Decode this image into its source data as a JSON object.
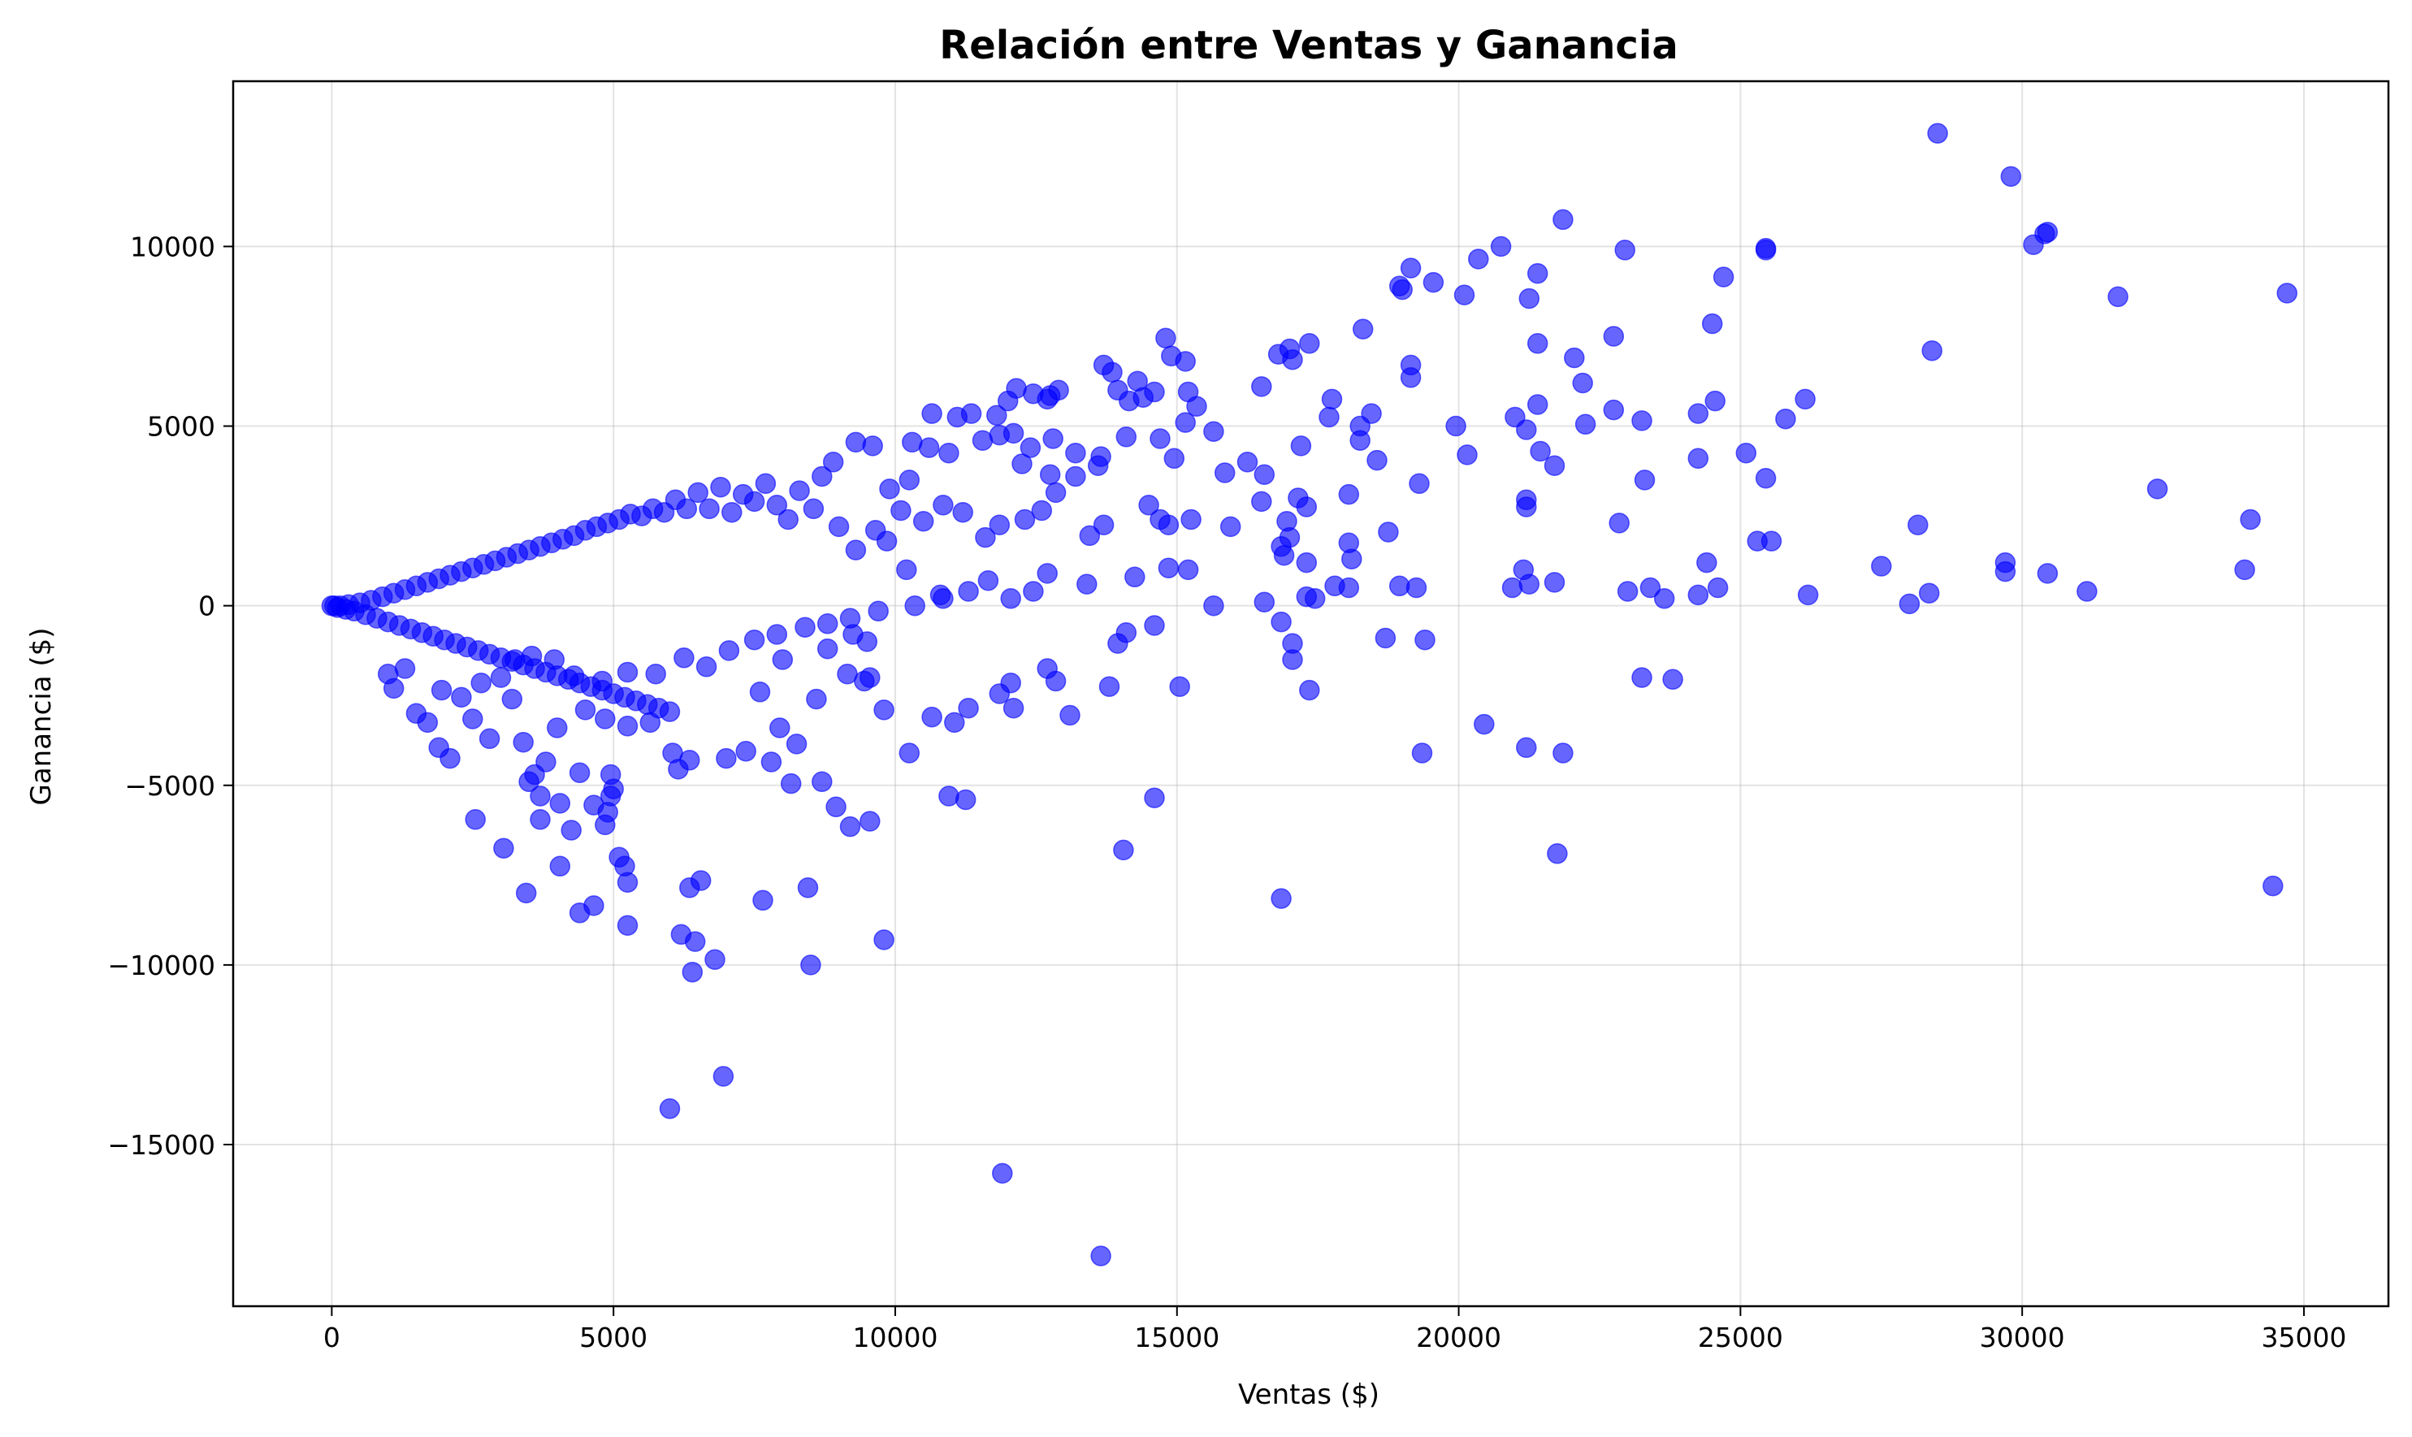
{
  "chart_data": {
    "type": "scatter",
    "title": "Relación entre Ventas y Ganancia",
    "xlabel": "Ventas ($)",
    "ylabel": "Ganancia ($)",
    "xlim": [
      -1750,
      36500
    ],
    "ylim": [
      -19500,
      14600
    ],
    "xticks": [
      0,
      5000,
      10000,
      15000,
      20000,
      25000,
      30000,
      35000
    ],
    "xtick_labels": [
      "0",
      "5000",
      "10000",
      "15000",
      "20000",
      "25000",
      "30000",
      "35000"
    ],
    "yticks": [
      -15000,
      -10000,
      -5000,
      0,
      5000,
      10000
    ],
    "ytick_labels": [
      "−15000",
      "−10000",
      "−5000",
      "0",
      "5000",
      "10000"
    ],
    "grid": true,
    "color": "#0000ff",
    "alpha": 0.6,
    "points": [
      [
        28500,
        13150
      ],
      [
        29800,
        11950
      ],
      [
        30450,
        10400
      ],
      [
        30400,
        10350
      ],
      [
        30200,
        10050
      ],
      [
        25450,
        9950
      ],
      [
        25450,
        9900
      ],
      [
        21850,
        10750
      ],
      [
        20750,
        10000
      ],
      [
        20350,
        9650
      ],
      [
        22950,
        9900
      ],
      [
        19150,
        9400
      ],
      [
        19550,
        9000
      ],
      [
        18950,
        8900
      ],
      [
        19000,
        8800
      ],
      [
        21400,
        9250
      ],
      [
        24700,
        9150
      ],
      [
        21250,
        8550
      ],
      [
        20100,
        8650
      ],
      [
        31700,
        8600
      ],
      [
        34700,
        8700
      ],
      [
        24500,
        7850
      ],
      [
        18300,
        7700
      ],
      [
        22750,
        7500
      ],
      [
        21400,
        7300
      ],
      [
        16800,
        7000
      ],
      [
        17000,
        7150
      ],
      [
        17350,
        7300
      ],
      [
        17050,
        6850
      ],
      [
        14800,
        7450
      ],
      [
        15150,
        6800
      ],
      [
        14900,
        6950
      ],
      [
        13700,
        6700
      ],
      [
        13850,
        6500
      ],
      [
        13950,
        6000
      ],
      [
        14300,
        6250
      ],
      [
        12150,
        6050
      ],
      [
        12450,
        5900
      ],
      [
        12750,
        5850
      ],
      [
        12900,
        6000
      ],
      [
        28400,
        7100
      ],
      [
        22050,
        6900
      ],
      [
        22200,
        6200
      ],
      [
        19150,
        6700
      ],
      [
        19150,
        6350
      ],
      [
        16500,
        6100
      ],
      [
        15200,
        5950
      ],
      [
        15350,
        5550
      ],
      [
        14600,
        5950
      ],
      [
        14400,
        5800
      ],
      [
        14150,
        5700
      ],
      [
        10650,
        5350
      ],
      [
        11100,
        5250
      ],
      [
        11350,
        5350
      ],
      [
        11800,
        5300
      ],
      [
        12000,
        5700
      ],
      [
        12700,
        5750
      ],
      [
        24550,
        5700
      ],
      [
        26150,
        5750
      ],
      [
        22750,
        5450
      ],
      [
        23250,
        5150
      ],
      [
        24250,
        5350
      ],
      [
        25800,
        5200
      ],
      [
        21400,
        5600
      ],
      [
        21200,
        4900
      ],
      [
        21000,
        5250
      ],
      [
        19950,
        5000
      ],
      [
        18450,
        5350
      ],
      [
        18250,
        5000
      ],
      [
        17700,
        5250
      ],
      [
        17750,
        5750
      ],
      [
        15650,
        4850
      ],
      [
        15150,
        5100
      ],
      [
        25100,
        4250
      ],
      [
        25450,
        3550
      ],
      [
        22250,
        5050
      ],
      [
        21450,
        4300
      ],
      [
        21700,
        3900
      ],
      [
        20150,
        4200
      ],
      [
        18250,
        4600
      ],
      [
        18550,
        4050
      ],
      [
        17200,
        4450
      ],
      [
        16250,
        4000
      ],
      [
        16550,
        3650
      ],
      [
        15850,
        3700
      ],
      [
        14950,
        4100
      ],
      [
        14700,
        4650
      ],
      [
        14100,
        4700
      ],
      [
        13650,
        4150
      ],
      [
        13200,
        4250
      ],
      [
        12800,
        4650
      ],
      [
        24250,
        4100
      ],
      [
        23300,
        3500
      ],
      [
        32400,
        3250
      ],
      [
        34050,
        2400
      ],
      [
        28150,
        2250
      ],
      [
        22850,
        2300
      ],
      [
        19300,
        3400
      ],
      [
        18050,
        3100
      ],
      [
        18750,
        2050
      ],
      [
        17150,
        3000
      ],
      [
        17300,
        2750
      ],
      [
        16950,
        2350
      ],
      [
        16850,
        1650
      ],
      [
        16500,
        2900
      ],
      [
        15950,
        2200
      ],
      [
        15250,
        2400
      ],
      [
        14500,
        2800
      ],
      [
        14700,
        2400
      ],
      [
        14850,
        2250
      ],
      [
        13700,
        2250
      ],
      [
        13450,
        1950
      ],
      [
        21200,
        2750
      ],
      [
        21200,
        2950
      ],
      [
        25300,
        1800
      ],
      [
        25550,
        1800
      ],
      [
        17300,
        1200
      ],
      [
        18050,
        1750
      ],
      [
        18100,
        1300
      ],
      [
        17800,
        550
      ],
      [
        17000,
        1900
      ],
      [
        16900,
        1400
      ],
      [
        24400,
        1200
      ],
      [
        21150,
        1000
      ],
      [
        21250,
        600
      ],
      [
        20950,
        500
      ],
      [
        21700,
        650
      ],
      [
        23000,
        400
      ],
      [
        23400,
        500
      ],
      [
        23650,
        200
      ],
      [
        24250,
        300
      ],
      [
        24600,
        500
      ],
      [
        19250,
        500
      ],
      [
        18950,
        550
      ],
      [
        26200,
        300
      ],
      [
        27500,
        1100
      ],
      [
        28000,
        50
      ],
      [
        28350,
        350
      ],
      [
        29700,
        1200
      ],
      [
        29700,
        950
      ],
      [
        30450,
        900
      ],
      [
        31150,
        400
      ],
      [
        33950,
        1000
      ],
      [
        15650,
        0
      ],
      [
        16550,
        100
      ],
      [
        17300,
        250
      ],
      [
        17450,
        200
      ],
      [
        18050,
        500
      ],
      [
        14850,
        1050
      ],
      [
        15200,
        1000
      ],
      [
        14250,
        800
      ],
      [
        13400,
        600
      ],
      [
        12700,
        900
      ],
      [
        12450,
        400
      ],
      [
        12050,
        200
      ],
      [
        11650,
        700
      ],
      [
        11300,
        400
      ],
      [
        10800,
        300
      ],
      [
        16850,
        -450
      ],
      [
        17050,
        -1050
      ],
      [
        17050,
        -1500
      ],
      [
        17350,
        -2350
      ],
      [
        18700,
        -900
      ],
      [
        19400,
        -950
      ],
      [
        23250,
        -2000
      ],
      [
        23800,
        -2050
      ],
      [
        21850,
        -4100
      ],
      [
        21200,
        -3950
      ],
      [
        20450,
        -3300
      ],
      [
        19350,
        -4100
      ],
      [
        16850,
        -8150
      ],
      [
        21750,
        -6900
      ],
      [
        34450,
        -7800
      ],
      [
        14100,
        -750
      ],
      [
        13950,
        -1050
      ],
      [
        14600,
        -550
      ],
      [
        13800,
        -2250
      ],
      [
        15050,
        -2250
      ],
      [
        14050,
        -6800
      ],
      [
        14600,
        -5350
      ],
      [
        12050,
        -2150
      ],
      [
        12700,
        -1750
      ],
      [
        12850,
        -2100
      ],
      [
        13100,
        -3050
      ],
      [
        11850,
        -2450
      ],
      [
        12100,
        -2850
      ],
      [
        11300,
        -2850
      ],
      [
        10650,
        -3100
      ],
      [
        11050,
        -3250
      ],
      [
        11250,
        -5400
      ],
      [
        10950,
        -5300
      ],
      [
        10250,
        -4100
      ],
      [
        9800,
        -2900
      ],
      [
        9450,
        -2100
      ],
      [
        9800,
        -9300
      ],
      [
        9550,
        -6000
      ],
      [
        9200,
        -6150
      ],
      [
        8950,
        -5600
      ],
      [
        8700,
        -4900
      ],
      [
        8450,
        -7850
      ],
      [
        8500,
        -10000
      ],
      [
        7650,
        -8200
      ],
      [
        6950,
        -13100
      ],
      [
        6000,
        -14000
      ],
      [
        11900,
        -15800
      ],
      [
        13650,
        -18100
      ],
      [
        6400,
        -10200
      ],
      [
        6800,
        -9850
      ],
      [
        6200,
        -9150
      ],
      [
        6450,
        -9350
      ],
      [
        6550,
        -7650
      ],
      [
        6350,
        -7850
      ],
      [
        5250,
        -8900
      ],
      [
        5250,
        -7700
      ],
      [
        5200,
        -7250
      ],
      [
        5100,
        -7000
      ],
      [
        4650,
        -8350
      ],
      [
        4400,
        -8550
      ],
      [
        3450,
        -8000
      ],
      [
        3050,
        -6750
      ],
      [
        2550,
        -5950
      ],
      [
        3700,
        -5950
      ],
      [
        3700,
        -5300
      ],
      [
        4050,
        -5500
      ],
      [
        4250,
        -6250
      ],
      [
        4050,
        -7250
      ],
      [
        4650,
        -5550
      ],
      [
        4900,
        -5750
      ],
      [
        4850,
        -6100
      ],
      [
        4950,
        -5300
      ],
      [
        4950,
        -4700
      ],
      [
        4400,
        -4650
      ],
      [
        5000,
        -5100
      ],
      [
        3600,
        -4700
      ],
      [
        3500,
        -4900
      ],
      [
        3800,
        -4350
      ],
      [
        3400,
        -3800
      ],
      [
        2800,
        -3700
      ],
      [
        3200,
        -2600
      ],
      [
        4000,
        -3400
      ],
      [
        4500,
        -2900
      ],
      [
        4850,
        -3150
      ],
      [
        5250,
        -3350
      ],
      [
        5650,
        -3250
      ],
      [
        6050,
        -4100
      ],
      [
        6150,
        -4550
      ],
      [
        6350,
        -4300
      ],
      [
        7000,
        -4250
      ],
      [
        7350,
        -4050
      ],
      [
        7800,
        -4350
      ],
      [
        8150,
        -4950
      ],
      [
        8250,
        -3850
      ],
      [
        7950,
        -3400
      ],
      [
        7600,
        -2400
      ],
      [
        8000,
        -1500
      ],
      [
        8600,
        -2600
      ],
      [
        9150,
        -1900
      ],
      [
        9550,
        -2000
      ],
      [
        9250,
        -800
      ],
      [
        9500,
        -1000
      ],
      [
        8800,
        -1200
      ],
      [
        10350,
        0
      ],
      [
        10850,
        200
      ],
      [
        10200,
        1000
      ],
      [
        2100,
        -4250
      ],
      [
        1900,
        -3950
      ],
      [
        1700,
        -3250
      ],
      [
        1500,
        -3000
      ],
      [
        1100,
        -2300
      ],
      [
        1000,
        -1900
      ],
      [
        1300,
        -1750
      ],
      [
        1950,
        -2350
      ],
      [
        2300,
        -2550
      ],
      [
        2500,
        -3150
      ],
      [
        2650,
        -2150
      ],
      [
        3000,
        -2000
      ],
      [
        3250,
        -1500
      ],
      [
        3550,
        -1400
      ],
      [
        3950,
        -1500
      ],
      [
        4300,
        -1950
      ],
      [
        4800,
        -2100
      ],
      [
        5250,
        -1850
      ],
      [
        5750,
        -1900
      ],
      [
        6250,
        -1450
      ],
      [
        6650,
        -1700
      ],
      [
        7050,
        -1250
      ],
      [
        7500,
        -950
      ],
      [
        7900,
        -800
      ],
      [
        8400,
        -600
      ],
      [
        8800,
        -500
      ],
      [
        9200,
        -350
      ],
      [
        9700,
        -150
      ],
      [
        9300,
        4550
      ],
      [
        8900,
        4000
      ],
      [
        9600,
        4450
      ],
      [
        9900,
        3250
      ],
      [
        10250,
        3500
      ],
      [
        10300,
        4550
      ],
      [
        10600,
        4400
      ],
      [
        10950,
        4250
      ],
      [
        11550,
        4600
      ],
      [
        11850,
        4750
      ],
      [
        12100,
        4800
      ],
      [
        12400,
        4400
      ],
      [
        12250,
        3950
      ],
      [
        12750,
        3650
      ],
      [
        12850,
        3150
      ],
      [
        13200,
        3600
      ],
      [
        13600,
        3900
      ],
      [
        12600,
        2650
      ],
      [
        12300,
        2400
      ],
      [
        11850,
        2250
      ],
      [
        11600,
        1900
      ],
      [
        11200,
        2600
      ],
      [
        10850,
        2800
      ],
      [
        10500,
        2350
      ],
      [
        10100,
        2650
      ],
      [
        9850,
        1800
      ],
      [
        9650,
        2100
      ],
      [
        9300,
        1550
      ],
      [
        9000,
        2200
      ],
      [
        8700,
        3600
      ],
      [
        8550,
        2700
      ],
      [
        8300,
        3200
      ],
      [
        8100,
        2400
      ],
      [
        7900,
        2800
      ],
      [
        7700,
        3400
      ],
      [
        7500,
        2900
      ],
      [
        7300,
        3100
      ],
      [
        7100,
        2600
      ],
      [
        6900,
        3300
      ],
      [
        6700,
        2700
      ],
      [
        6500,
        3150
      ],
      [
        6300,
        2700
      ],
      [
        6100,
        2950
      ],
      [
        5900,
        2600
      ],
      [
        5700,
        2700
      ],
      [
        5500,
        2500
      ],
      [
        5300,
        2550
      ],
      [
        5100,
        2400
      ],
      [
        4900,
        2300
      ],
      [
        4700,
        2200
      ],
      [
        4500,
        2100
      ],
      [
        4300,
        1950
      ],
      [
        4100,
        1850
      ],
      [
        3900,
        1750
      ],
      [
        3700,
        1650
      ],
      [
        3500,
        1550
      ],
      [
        3300,
        1450
      ],
      [
        3100,
        1350
      ],
      [
        2900,
        1250
      ],
      [
        2700,
        1150
      ],
      [
        2500,
        1050
      ],
      [
        2300,
        950
      ],
      [
        2100,
        850
      ],
      [
        1900,
        750
      ],
      [
        1700,
        650
      ],
      [
        1500,
        550
      ],
      [
        1300,
        450
      ],
      [
        1100,
        350
      ],
      [
        900,
        250
      ],
      [
        700,
        150
      ],
      [
        500,
        80
      ],
      [
        300,
        30
      ],
      [
        150,
        0
      ],
      [
        50,
        0
      ],
      [
        0,
        0
      ],
      [
        100,
        -50
      ],
      [
        250,
        -100
      ],
      [
        400,
        -150
      ],
      [
        600,
        -250
      ],
      [
        800,
        -350
      ],
      [
        1000,
        -450
      ],
      [
        1200,
        -550
      ],
      [
        1400,
        -650
      ],
      [
        1600,
        -750
      ],
      [
        1800,
        -850
      ],
      [
        2000,
        -950
      ],
      [
        2200,
        -1050
      ],
      [
        2400,
        -1150
      ],
      [
        2600,
        -1250
      ],
      [
        2800,
        -1350
      ],
      [
        3000,
        -1450
      ],
      [
        3200,
        -1550
      ],
      [
        3400,
        -1650
      ],
      [
        3600,
        -1750
      ],
      [
        3800,
        -1850
      ],
      [
        4000,
        -1950
      ],
      [
        4200,
        -2050
      ],
      [
        4400,
        -2150
      ],
      [
        4600,
        -2250
      ],
      [
        4800,
        -2350
      ],
      [
        5000,
        -2450
      ],
      [
        5200,
        -2550
      ],
      [
        5400,
        -2650
      ],
      [
        5600,
        -2750
      ],
      [
        5800,
        -2850
      ],
      [
        6000,
        -2950
      ]
    ]
  }
}
